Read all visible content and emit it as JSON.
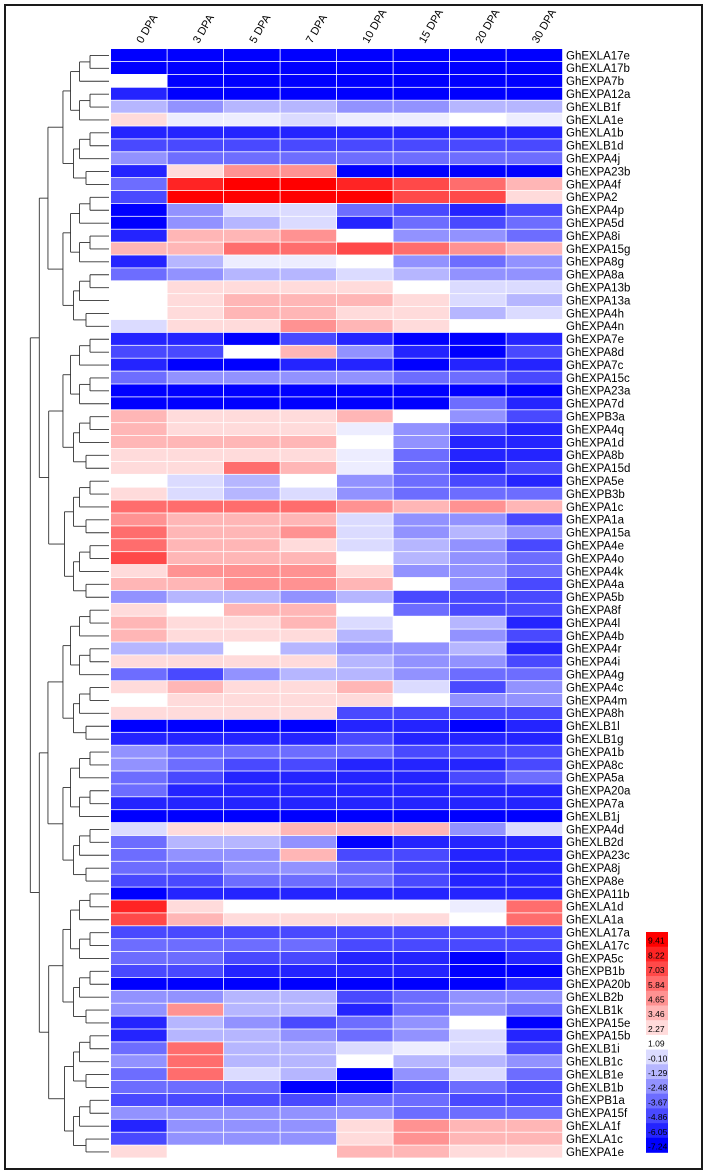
{
  "chart_data": {
    "type": "heatmap",
    "title": "",
    "columns": [
      "0 DPA",
      "3 DPA",
      "5 DPA",
      "7 DPA",
      "10 DPA",
      "15 DPA",
      "20 DPA",
      "30 DPA"
    ],
    "rows": [
      "GhEXLA17e",
      "GhEXLA17b",
      "GhEXPA7b",
      "GhEXPA12a",
      "GhEXLB1f",
      "GhEXLA1e",
      "GhEXLA1b",
      "GhEXLB1d",
      "GhEXPA4j",
      "GhEXPA23b",
      "GhEXPA4f",
      "GhEXPA2",
      "GhEXPA4p",
      "GhEXPA5d",
      "GhEXPA8i",
      "GhEXPA15g",
      "GhEXPA8g",
      "GhEXPA8a",
      "GhEXPA13b",
      "GhEXPA13a",
      "GhEXPA4h",
      "GhEXPA4n",
      "GhEXPA7e",
      "GhEXPA8d",
      "GhEXPA7c",
      "GhEXPA15c",
      "GhEXPA23a",
      "GhEXPA7d",
      "GhEXPB3a",
      "GhEXPA4q",
      "GhEXPA1d",
      "GhEXPA8b",
      "GhEXPA15d",
      "GhEXPA5e",
      "GhEXPB3b",
      "GhEXPA1c",
      "GhEXPA1a",
      "GhEXPA15a",
      "GhEXPA4e",
      "GhEXPA4o",
      "GhEXPA4k",
      "GhEXPA4a",
      "GhEXPA5b",
      "GhEXPA8f",
      "GhEXPA4l",
      "GhEXPA4b",
      "GhEXPA4r",
      "GhEXPA4i",
      "GhEXPA4g",
      "GhEXPA4c",
      "GhEXPA4m",
      "GhEXPA8h",
      "GhEXLB1l",
      "GhEXLB1g",
      "GhEXPA1b",
      "GhEXPA8c",
      "GhEXPA5a",
      "GhEXPA20a",
      "GhEXPA7a",
      "GhEXLB1j",
      "GhEXPA4d",
      "GhEXLB2d",
      "GhEXPA23c",
      "GhEXPA8j",
      "GhEXPA8e",
      "GhEXPA11b",
      "GhEXLA1d",
      "GhEXLA1a",
      "GhEXLA17a",
      "GhEXLA17c",
      "GhEXPA5c",
      "GhEXPB1b",
      "GhEXPA20b",
      "GhEXLB2b",
      "GhEXLB1k",
      "GhEXPA15e",
      "GhEXPA15b",
      "GhEXLB1i",
      "GhEXLB1c",
      "GhEXLB1e",
      "GhEXLB1b",
      "GhEXPB1a",
      "GhEXPA15f",
      "GhEXLA1f",
      "GhEXLA1c",
      "GhEXPA1e"
    ],
    "values": [
      [
        -7.24,
        -7.24,
        -7.24,
        -7.24,
        -7.24,
        -7.24,
        -7.24,
        -7.24
      ],
      [
        -7.24,
        -7.24,
        -7.24,
        -7.24,
        -7.24,
        -7.24,
        -7.24,
        -7.24
      ],
      [
        1.09,
        -7.24,
        -7.24,
        -7.24,
        -7.24,
        -7.24,
        -7.24,
        -7.24
      ],
      [
        -6.05,
        -7.24,
        -7.24,
        -7.24,
        -7.24,
        -7.24,
        -7.24,
        -7.24
      ],
      [
        -1.29,
        -2.48,
        -1.29,
        -1.29,
        -2.48,
        -2.48,
        -1.29,
        -1.29
      ],
      [
        2.27,
        0.5,
        0.5,
        -0.1,
        0.5,
        0.5,
        1.09,
        0.5
      ],
      [
        -6.05,
        -6.05,
        -6.05,
        -6.05,
        -6.05,
        -6.05,
        -6.05,
        -6.05
      ],
      [
        -4.86,
        -4.86,
        -4.86,
        -4.86,
        -4.86,
        -4.86,
        -4.86,
        -4.86
      ],
      [
        -2.48,
        -3.67,
        -3.67,
        -3.67,
        -3.67,
        -3.67,
        -3.67,
        -3.67
      ],
      [
        -6.05,
        2.27,
        4.65,
        4.65,
        -7.24,
        -7.24,
        -7.24,
        -7.24
      ],
      [
        -3.67,
        8.22,
        9.41,
        9.41,
        8.22,
        7.03,
        5.84,
        3.46
      ],
      [
        -4.86,
        9.41,
        9.41,
        9.41,
        9.41,
        7.03,
        7.03,
        2.27
      ],
      [
        -7.24,
        -2.48,
        -0.1,
        -0.1,
        -3.67,
        -4.86,
        -6.05,
        -4.86
      ],
      [
        -7.24,
        -2.48,
        -1.29,
        -0.1,
        -6.05,
        -3.67,
        -4.86,
        -3.67
      ],
      [
        -6.05,
        3.46,
        3.46,
        4.65,
        1.09,
        -2.48,
        -2.48,
        -3.67
      ],
      [
        3.46,
        3.46,
        5.84,
        5.84,
        7.03,
        5.84,
        4.65,
        3.46
      ],
      [
        -6.05,
        -1.29,
        0.5,
        0.5,
        1.09,
        -2.48,
        -3.67,
        -2.48
      ],
      [
        -3.67,
        -2.48,
        -1.29,
        -1.29,
        -0.1,
        -1.29,
        -2.48,
        -2.48
      ],
      [
        1.09,
        2.27,
        2.27,
        2.27,
        2.27,
        1.09,
        -0.1,
        -0.1
      ],
      [
        1.09,
        2.27,
        3.46,
        3.46,
        3.46,
        2.27,
        -0.1,
        -1.29
      ],
      [
        1.09,
        2.27,
        3.46,
        3.46,
        2.27,
        2.27,
        -1.29,
        -0.1
      ],
      [
        -0.1,
        2.27,
        2.27,
        4.65,
        3.46,
        2.27,
        1.09,
        1.09
      ],
      [
        -6.05,
        -6.05,
        -7.24,
        -4.86,
        -6.05,
        -7.24,
        -7.24,
        -6.05
      ],
      [
        -4.86,
        -4.86,
        1.09,
        3.46,
        -2.48,
        -6.05,
        -7.24,
        -4.86
      ],
      [
        -6.05,
        -7.24,
        -7.24,
        -6.05,
        -6.05,
        -7.24,
        -6.05,
        -6.05
      ],
      [
        -3.67,
        -2.48,
        -2.48,
        -2.48,
        -2.48,
        -3.67,
        -3.67,
        -4.86
      ],
      [
        -7.24,
        -7.24,
        -7.24,
        -7.24,
        -7.24,
        -7.24,
        -7.24,
        -7.24
      ],
      [
        -7.24,
        -7.24,
        -7.24,
        -7.24,
        -7.24,
        -7.24,
        -3.67,
        -6.05
      ],
      [
        3.46,
        2.27,
        2.27,
        2.27,
        3.46,
        1.09,
        -2.48,
        -4.86
      ],
      [
        3.46,
        2.27,
        2.27,
        2.27,
        0.5,
        -2.48,
        -4.86,
        -6.05
      ],
      [
        3.46,
        3.46,
        3.46,
        3.46,
        1.09,
        -2.48,
        -6.05,
        -6.05
      ],
      [
        2.27,
        2.27,
        2.27,
        2.27,
        0.5,
        -3.67,
        -6.05,
        -6.05
      ],
      [
        2.27,
        2.27,
        5.84,
        3.46,
        0.5,
        -3.67,
        -6.05,
        -4.86
      ],
      [
        1.09,
        -0.1,
        -1.29,
        1.09,
        -2.48,
        -3.67,
        -4.86,
        -6.05
      ],
      [
        2.27,
        -0.1,
        -1.29,
        -0.1,
        -2.48,
        -3.67,
        -3.67,
        -3.67
      ],
      [
        5.84,
        5.84,
        5.84,
        5.84,
        4.65,
        3.46,
        4.65,
        3.46
      ],
      [
        4.65,
        3.46,
        3.46,
        3.46,
        -0.1,
        -2.48,
        -2.48,
        -4.86
      ],
      [
        5.84,
        3.46,
        3.46,
        4.65,
        -0.1,
        -2.48,
        -1.29,
        -2.48
      ],
      [
        5.84,
        3.46,
        3.46,
        2.27,
        -0.1,
        -1.29,
        -2.48,
        -4.86
      ],
      [
        7.03,
        3.46,
        3.46,
        3.46,
        1.09,
        -1.29,
        -2.48,
        -3.67
      ],
      [
        2.27,
        4.65,
        4.65,
        4.65,
        2.27,
        -2.48,
        -2.48,
        -3.67
      ],
      [
        3.46,
        3.46,
        4.65,
        4.65,
        3.46,
        1.09,
        -2.48,
        -4.86
      ],
      [
        -2.48,
        -1.29,
        -1.29,
        -2.48,
        -1.29,
        -4.86,
        -4.86,
        -4.86
      ],
      [
        2.27,
        1.09,
        3.46,
        3.46,
        1.09,
        -3.67,
        -4.86,
        -4.86
      ],
      [
        3.46,
        2.27,
        2.27,
        3.46,
        -0.1,
        1.09,
        -1.29,
        -6.05
      ],
      [
        3.46,
        2.27,
        2.27,
        2.27,
        -1.29,
        1.09,
        -2.48,
        -4.86
      ],
      [
        -1.29,
        -1.29,
        1.09,
        -1.29,
        -2.48,
        -2.48,
        -1.29,
        -6.05
      ],
      [
        2.27,
        2.27,
        2.27,
        2.27,
        -1.29,
        -2.48,
        -2.48,
        -4.86
      ],
      [
        -3.67,
        -4.86,
        -2.48,
        -1.29,
        -1.29,
        -2.48,
        -3.67,
        -3.67
      ],
      [
        2.27,
        3.46,
        2.27,
        2.27,
        3.46,
        -0.1,
        -4.86,
        -2.48
      ],
      [
        1.09,
        2.27,
        2.27,
        2.27,
        2.27,
        1.09,
        -2.48,
        -2.48
      ],
      [
        2.27,
        2.27,
        2.27,
        2.27,
        -4.86,
        -4.86,
        -4.86,
        -4.86
      ],
      [
        -7.24,
        -7.24,
        -7.24,
        -7.24,
        -6.05,
        -6.05,
        -7.24,
        -6.05
      ],
      [
        -6.05,
        -6.05,
        -6.05,
        -6.05,
        -4.86,
        -6.05,
        -6.05,
        -6.05
      ],
      [
        -2.48,
        -3.67,
        -3.67,
        -3.67,
        -3.67,
        -4.86,
        -4.86,
        -4.86
      ],
      [
        -2.48,
        -3.67,
        -4.86,
        -4.86,
        -6.05,
        -6.05,
        -6.05,
        -4.86
      ],
      [
        -3.67,
        -4.86,
        -6.05,
        -6.05,
        -6.05,
        -6.05,
        -4.86,
        -3.67
      ],
      [
        -3.67,
        -6.05,
        -6.05,
        -6.05,
        -6.05,
        -6.05,
        -6.05,
        -6.05
      ],
      [
        -6.05,
        -6.05,
        -6.05,
        -6.05,
        -6.05,
        -6.05,
        -6.05,
        -6.05
      ],
      [
        -7.24,
        -7.24,
        -7.24,
        -7.24,
        -7.24,
        -7.24,
        -7.24,
        -7.24
      ],
      [
        -0.1,
        2.27,
        2.27,
        3.46,
        3.46,
        3.46,
        -2.48,
        -0.1
      ],
      [
        -3.67,
        -1.29,
        -1.29,
        -2.48,
        -7.24,
        -6.05,
        -6.05,
        -6.05
      ],
      [
        -3.67,
        -2.48,
        -2.48,
        3.46,
        -4.86,
        -4.86,
        -6.05,
        -6.05
      ],
      [
        -3.67,
        -3.67,
        -2.48,
        -2.48,
        -3.67,
        -4.86,
        -6.05,
        -6.05
      ],
      [
        -4.86,
        -4.86,
        -3.67,
        -3.67,
        -3.67,
        -4.86,
        -6.05,
        -6.05
      ],
      [
        -7.24,
        -6.05,
        -6.05,
        -6.05,
        -6.05,
        -6.05,
        -6.05,
        -6.05
      ],
      [
        8.22,
        2.27,
        1.09,
        1.09,
        1.09,
        1.09,
        0.5,
        5.84
      ],
      [
        7.03,
        3.46,
        2.27,
        2.27,
        2.27,
        2.27,
        1.09,
        5.84
      ],
      [
        -4.86,
        -4.86,
        -4.86,
        -4.86,
        -4.86,
        -4.86,
        -4.86,
        -4.86
      ],
      [
        -3.67,
        -3.67,
        -3.67,
        -3.67,
        -4.86,
        -4.86,
        -4.86,
        -4.86
      ],
      [
        -3.67,
        -3.67,
        -4.86,
        -4.86,
        -6.05,
        -6.05,
        -7.24,
        -6.05
      ],
      [
        -4.86,
        -4.86,
        -6.05,
        -6.05,
        -6.05,
        -6.05,
        -7.24,
        -7.24
      ],
      [
        -7.24,
        -7.24,
        -7.24,
        -7.24,
        -7.24,
        -7.24,
        -7.24,
        -6.05
      ],
      [
        -2.48,
        -2.48,
        -1.29,
        -1.29,
        -4.86,
        -3.67,
        -2.48,
        -2.48
      ],
      [
        -2.48,
        4.65,
        -1.29,
        -1.29,
        -6.05,
        -3.67,
        -2.48,
        -3.67
      ],
      [
        -6.05,
        -1.29,
        -2.48,
        -4.86,
        -3.67,
        -2.48,
        1.09,
        -7.24
      ],
      [
        -6.05,
        -1.29,
        -1.29,
        -2.48,
        -3.67,
        -2.48,
        -0.1,
        -6.05
      ],
      [
        -3.67,
        5.84,
        -1.29,
        -1.29,
        -0.1,
        0.5,
        -0.1,
        -4.86
      ],
      [
        -2.48,
        5.84,
        -1.29,
        -1.29,
        1.09,
        -1.29,
        -1.29,
        -2.48
      ],
      [
        -3.67,
        5.84,
        -0.1,
        -1.29,
        -7.24,
        -2.48,
        -0.1,
        -3.67
      ],
      [
        -3.67,
        -3.67,
        -3.67,
        -7.24,
        -7.24,
        -4.86,
        -3.67,
        -4.86
      ],
      [
        -4.86,
        -4.86,
        -4.86,
        -4.86,
        -3.67,
        -3.67,
        -4.86,
        -4.86
      ],
      [
        -2.48,
        -2.48,
        -2.48,
        -2.48,
        -2.48,
        -3.67,
        -3.67,
        -3.67
      ],
      [
        -6.05,
        -2.48,
        -2.48,
        -2.48,
        2.27,
        4.65,
        3.46,
        3.46
      ],
      [
        -4.86,
        -2.48,
        -2.48,
        -2.48,
        2.27,
        4.65,
        3.46,
        3.46
      ],
      [
        2.27,
        1.09,
        1.09,
        1.09,
        3.46,
        3.46,
        2.27,
        2.27
      ]
    ],
    "color_scale": {
      "min": -7.24,
      "max": 9.41,
      "center": 1.09,
      "low_color": "#0000ff",
      "mid_color": "#ffffff",
      "high_color": "#ff0000",
      "ticks": [
        "9.41",
        "8.22",
        "7.03",
        "5.84",
        "4.65",
        "3.46",
        "2.27",
        "1.09",
        "-0.10",
        "-1.29",
        "-2.48",
        "-3.67",
        "-4.86",
        "-6.05",
        "-7.24"
      ]
    },
    "legend_position": "bottom-right",
    "dendrogram": "rows (left side)"
  }
}
